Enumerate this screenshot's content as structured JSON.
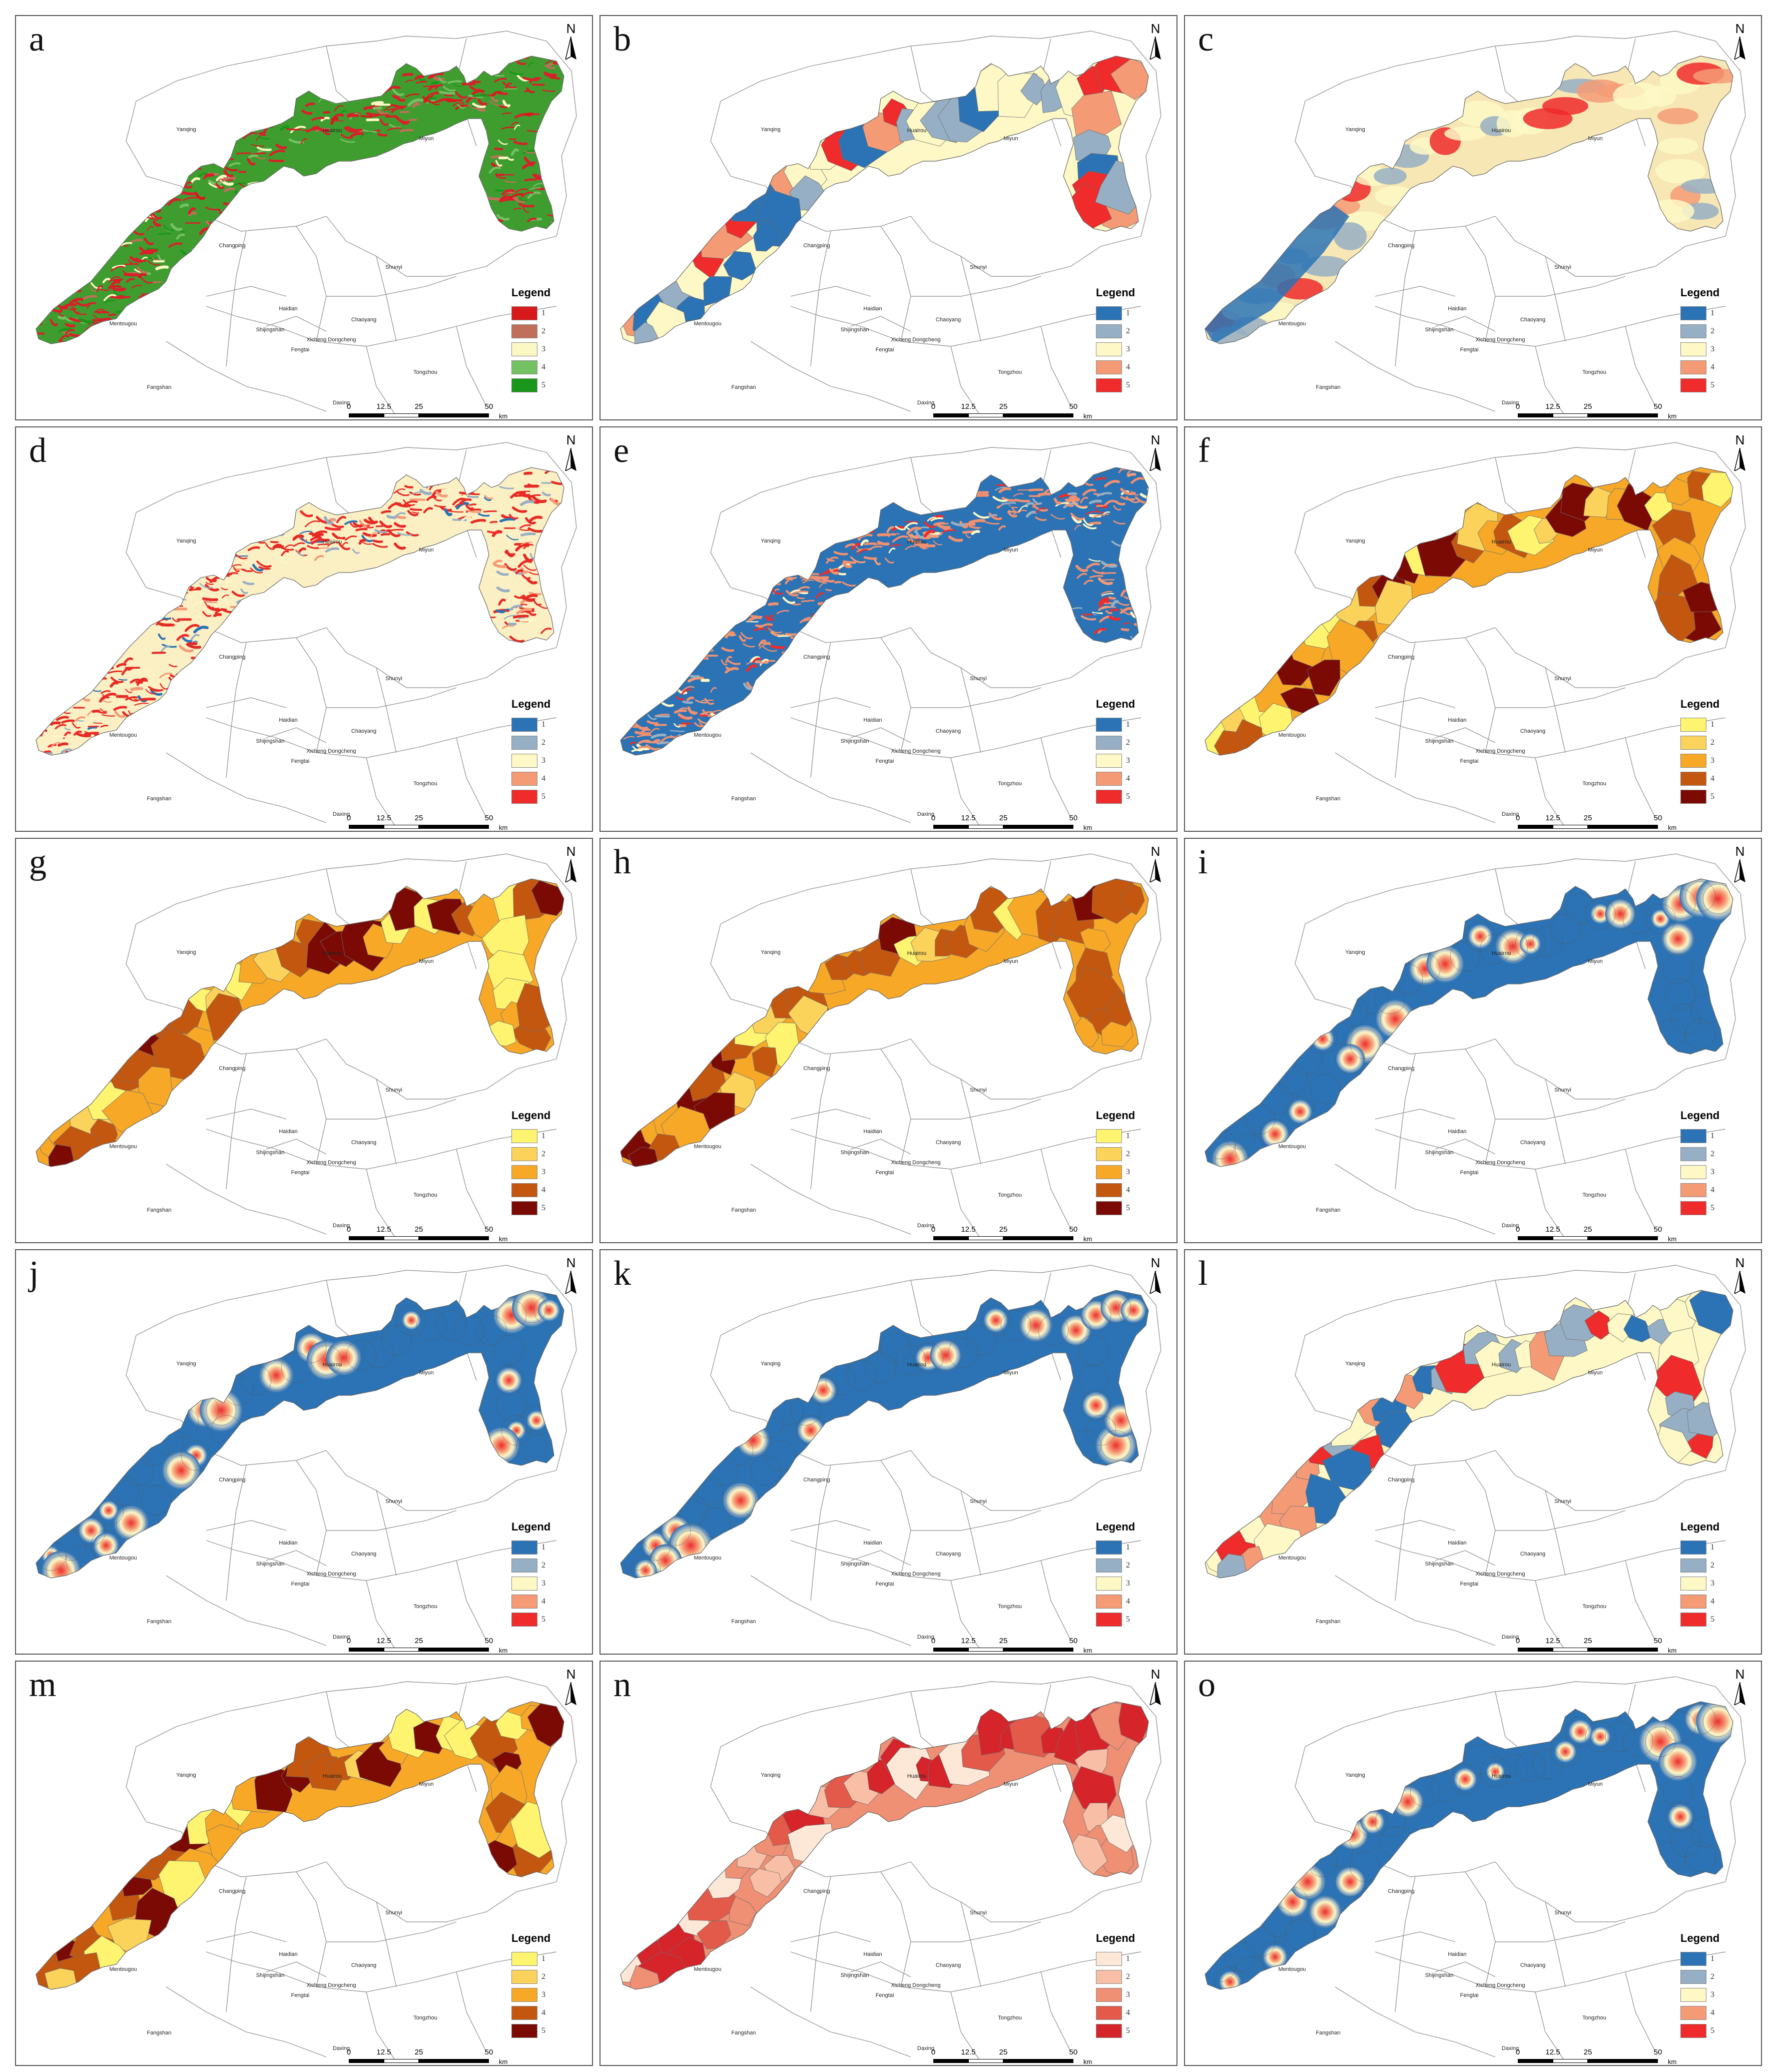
{
  "shared": {
    "north_label": "N",
    "legend_title": "Legend",
    "scale_ticks": [
      "0",
      "12.5",
      "25",
      "50"
    ],
    "scale_unit": "km",
    "class_labels": [
      "1",
      "2",
      "3",
      "4",
      "5"
    ],
    "place_names": [
      "Yanqing",
      "Huairou",
      "Miyun",
      "Changping",
      "Shunyi",
      "Haidian",
      "Chaoyang",
      "Mentougou",
      "Shijingshan",
      "Xicheng Dongcheng",
      "Fengtai",
      "Tongzhou",
      "Fangshan",
      "Daxing"
    ]
  },
  "panels": [
    {
      "label": "a",
      "style": "texture",
      "colors": [
        "#d7191c",
        "#c0705a",
        "#fcf8c4",
        "#74c164",
        "#1a961a"
      ],
      "base": "#3f9d2f",
      "accent": "#d8202a"
    },
    {
      "label": "b",
      "style": "patches",
      "colors": [
        "#2b73b5",
        "#96afc4",
        "#fdf8c6",
        "#f49b76",
        "#ef2b2b"
      ]
    },
    {
      "label": "c",
      "style": "gradient",
      "colors": [
        "#2b73b5",
        "#96afc4",
        "#fdf8c6",
        "#f49b76",
        "#ef2b2b"
      ],
      "base": "#f7e7b4",
      "accent": "#e8302b"
    },
    {
      "label": "d",
      "style": "texture",
      "colors": [
        "#2b73b5",
        "#96afc4",
        "#fdf8c6",
        "#f49b76",
        "#ef2b2b"
      ],
      "base": "#fbefc4",
      "accent": "#e62b24"
    },
    {
      "label": "e",
      "style": "texture",
      "colors": [
        "#2b73b5",
        "#96afc4",
        "#fdf8c6",
        "#f49b76",
        "#ef2b2b"
      ],
      "base": "#2b73b5",
      "accent": "#f09070"
    },
    {
      "label": "f",
      "style": "patches",
      "colors": [
        "#fef46f",
        "#fbd35b",
        "#f7a827",
        "#c4570f",
        "#7b0a05"
      ]
    },
    {
      "label": "g",
      "style": "patches",
      "colors": [
        "#fef46f",
        "#fbd35b",
        "#f7a827",
        "#c4570f",
        "#7b0a05"
      ]
    },
    {
      "label": "h",
      "style": "patches",
      "colors": [
        "#fef46f",
        "#fbd35b",
        "#f7a827",
        "#c4570f",
        "#7b0a05"
      ]
    },
    {
      "label": "i",
      "style": "hotspot",
      "colors": [
        "#2b73b5",
        "#96afc4",
        "#fdf8c6",
        "#f49b76",
        "#ef2b2b"
      ],
      "base": "#2b73b5"
    },
    {
      "label": "j",
      "style": "hotspot",
      "colors": [
        "#2b73b5",
        "#96afc4",
        "#fdf8c6",
        "#f49b76",
        "#ef2b2b"
      ],
      "base": "#2b73b5"
    },
    {
      "label": "k",
      "style": "hotspot",
      "colors": [
        "#2b73b5",
        "#96afc4",
        "#fdf8c6",
        "#f49b76",
        "#ef2b2b"
      ],
      "base": "#2b73b5"
    },
    {
      "label": "l",
      "style": "patches",
      "colors": [
        "#2b73b5",
        "#96afc4",
        "#fdf8c6",
        "#f49b76",
        "#ef2b2b"
      ]
    },
    {
      "label": "m",
      "style": "patches",
      "colors": [
        "#fef46f",
        "#fbd35b",
        "#f7a827",
        "#c4570f",
        "#7b0a05"
      ]
    },
    {
      "label": "n",
      "style": "patches",
      "colors": [
        "#fde8d8",
        "#f8bfa6",
        "#ef8f74",
        "#e35a4a",
        "#d6242b"
      ]
    },
    {
      "label": "o",
      "style": "hotspot",
      "colors": [
        "#2b73b5",
        "#96afc4",
        "#fdf8c6",
        "#f49b76",
        "#ef2b2b"
      ],
      "base": "#2b73b5"
    }
  ]
}
